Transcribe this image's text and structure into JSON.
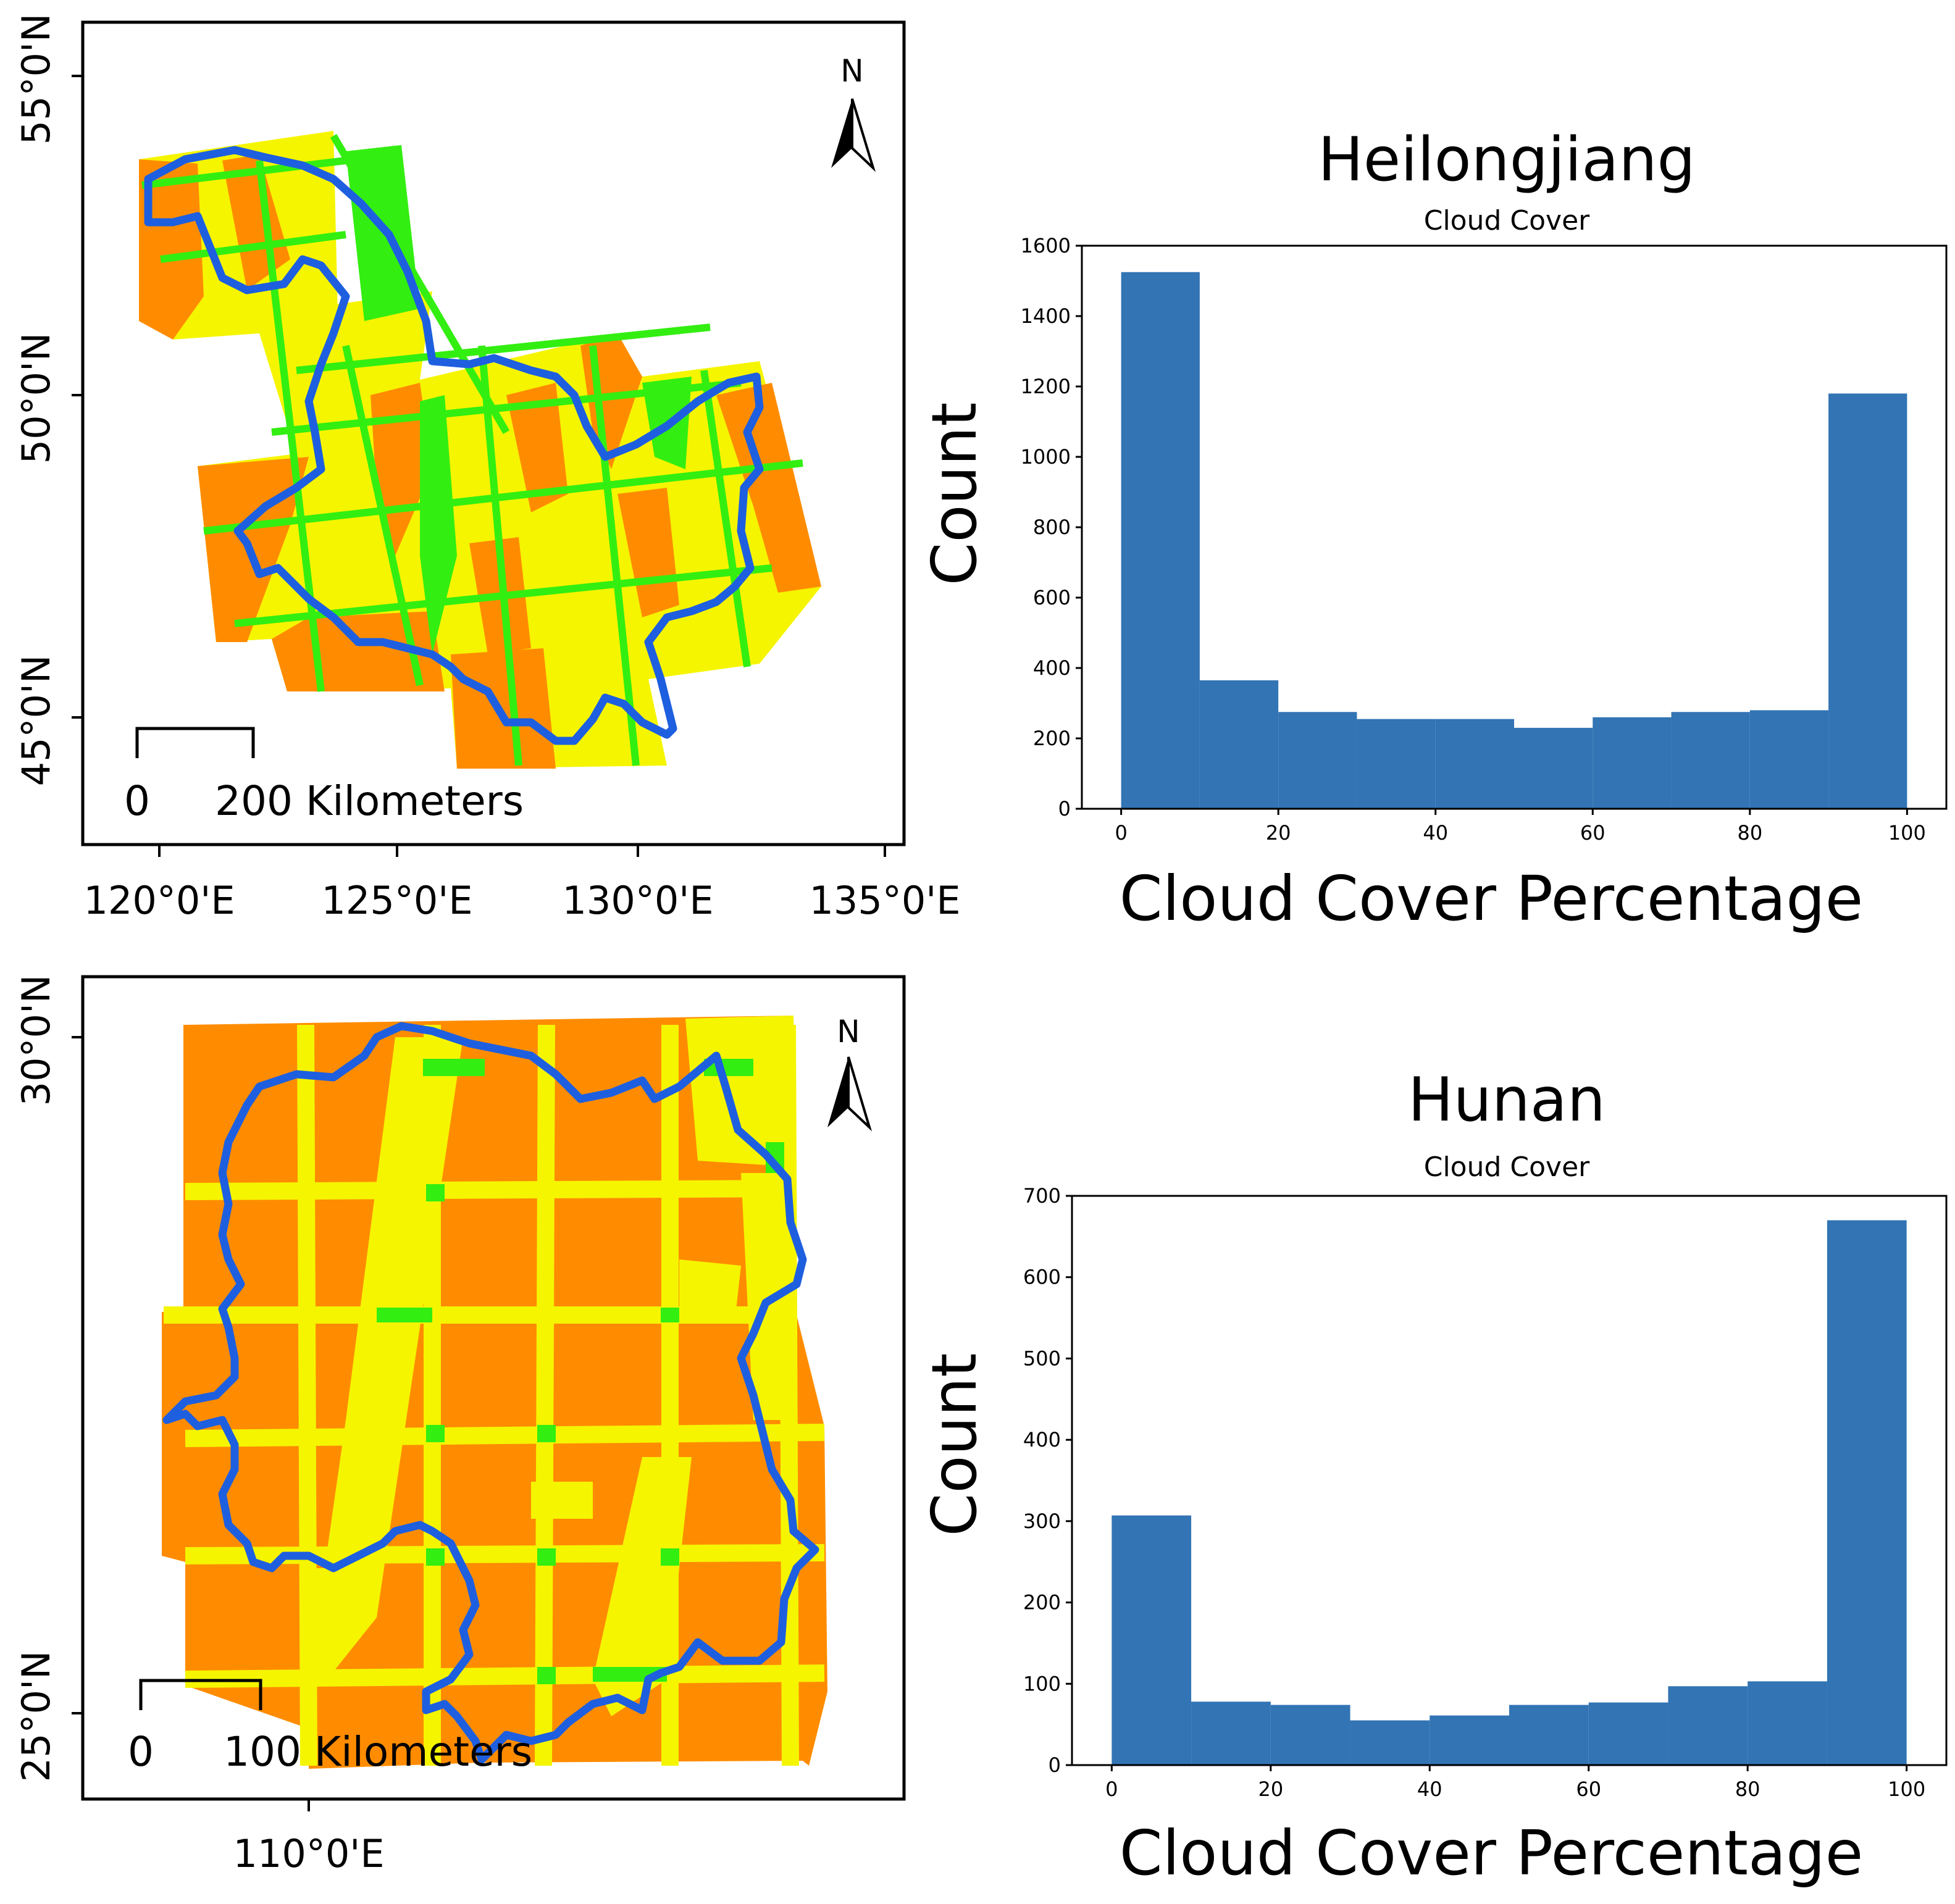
{
  "maps": [
    {
      "id": "heilongjiang",
      "lat_labels": [
        "55°0'N",
        "50°0'N",
        "45°0'N"
      ],
      "lon_labels": [
        "120°0'E",
        "125°0'E",
        "130°0'E",
        "135°0'E"
      ],
      "north_label": "N",
      "scale": {
        "zero": "0",
        "distance": "200 Kilometers"
      },
      "colors": {
        "orange": "#FF8C00",
        "yellow": "#F5F500",
        "green": "#33EE11",
        "boundary": "#1E5FE0"
      }
    },
    {
      "id": "hunan",
      "lat_labels": [
        "30°0'N",
        "25°0'N"
      ],
      "lon_labels": [
        "110°0'E"
      ],
      "north_label": "N",
      "scale": {
        "zero": "0",
        "distance": "100 Kilometers"
      },
      "colors": {
        "orange": "#FF8C00",
        "yellow": "#F5F500",
        "green": "#33EE11",
        "boundary": "#1E5FE0"
      }
    }
  ],
  "chart_data": [
    {
      "type": "bar",
      "title": "Heilongjiang",
      "subtitle": "Cloud Cover",
      "xlabel": "Cloud Cover Percentage",
      "ylabel": "Count",
      "bin_edges": [
        0,
        10,
        20,
        30,
        40,
        50,
        60,
        70,
        80,
        90,
        100
      ],
      "values": [
        1525,
        365,
        275,
        255,
        255,
        230,
        260,
        275,
        280,
        1180
      ],
      "xlim": [
        -5,
        105
      ],
      "ylim": [
        0,
        1600
      ],
      "xticks": [
        0,
        20,
        40,
        60,
        80,
        100
      ],
      "yticks": [
        0,
        200,
        400,
        600,
        800,
        1000,
        1200,
        1400,
        1600
      ],
      "bar_color": "#3274B4"
    },
    {
      "type": "bar",
      "title": "Hunan",
      "subtitle": "Cloud Cover",
      "xlabel": "Cloud Cover Percentage",
      "ylabel": "Count",
      "bin_edges": [
        0,
        10,
        20,
        30,
        40,
        50,
        60,
        70,
        80,
        90,
        100
      ],
      "values": [
        307,
        78,
        74,
        55,
        61,
        74,
        77,
        97,
        103,
        670
      ],
      "xlim": [
        -5,
        105
      ],
      "ylim": [
        0,
        700
      ],
      "xticks": [
        0,
        20,
        40,
        60,
        80,
        100
      ],
      "yticks": [
        0,
        100,
        200,
        300,
        400,
        500,
        600,
        700
      ],
      "bar_color": "#3274B4"
    }
  ]
}
